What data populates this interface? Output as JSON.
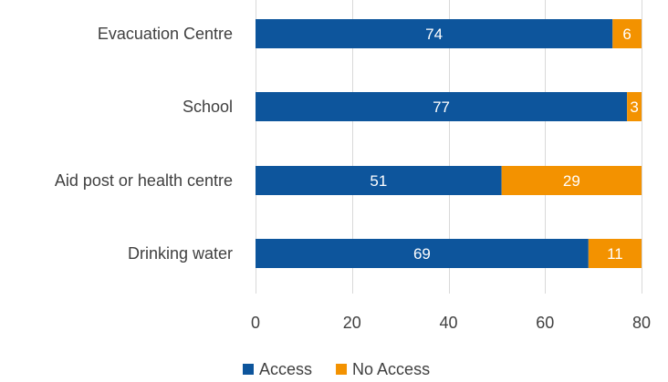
{
  "chart_data": {
    "type": "bar",
    "orientation": "horizontal",
    "stacked": true,
    "categories": [
      "Evacuation Centre",
      "School",
      "Aid post or health centre",
      "Drinking water"
    ],
    "series": [
      {
        "name": "Access",
        "values": [
          74,
          77,
          51,
          69
        ],
        "color": "#0d559c"
      },
      {
        "name": "No Access",
        "values": [
          6,
          3,
          29,
          11
        ],
        "color": "#f39200"
      }
    ],
    "xlim": [
      0,
      80
    ],
    "xticks": [
      "0",
      "20",
      "40",
      "60",
      "80"
    ],
    "grid": true,
    "legend": "bottom",
    "label_color": "#404040",
    "grid_color": "#d9d9d9"
  }
}
